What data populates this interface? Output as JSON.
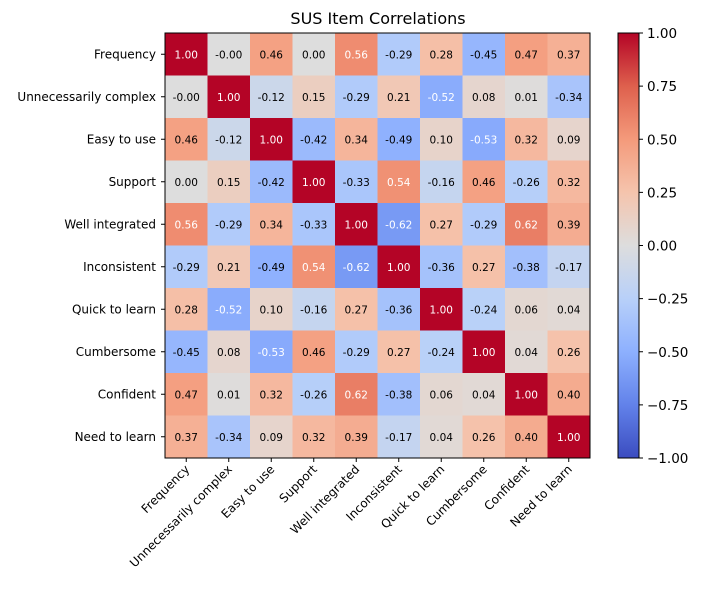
{
  "chart_data": {
    "type": "heatmap",
    "title": "SUS Item Correlations",
    "xlabel": "",
    "ylabel": "",
    "labels": [
      "Frequency",
      "Unnecessarily complex",
      "Easy to use",
      "Support",
      "Well integrated",
      "Inconsistent",
      "Quick to learn",
      "Cumbersome",
      "Confident",
      "Need to learn"
    ],
    "matrix": [
      [
        1.0,
        -0.0,
        0.46,
        0.0,
        0.56,
        -0.29,
        0.28,
        -0.45,
        0.47,
        0.37
      ],
      [
        -0.0,
        1.0,
        -0.12,
        0.15,
        -0.29,
        0.21,
        -0.52,
        0.08,
        0.01,
        -0.34
      ],
      [
        0.46,
        -0.12,
        1.0,
        -0.42,
        0.34,
        -0.49,
        0.1,
        -0.53,
        0.32,
        0.09
      ],
      [
        0.0,
        0.15,
        -0.42,
        1.0,
        -0.33,
        0.54,
        -0.16,
        0.46,
        -0.26,
        0.32
      ],
      [
        0.56,
        -0.29,
        0.34,
        -0.33,
        1.0,
        -0.62,
        0.27,
        -0.29,
        0.62,
        0.39
      ],
      [
        -0.29,
        0.21,
        -0.49,
        0.54,
        -0.62,
        1.0,
        -0.36,
        0.27,
        -0.38,
        -0.17
      ],
      [
        0.28,
        -0.52,
        0.1,
        -0.16,
        0.27,
        -0.36,
        1.0,
        -0.24,
        0.06,
        0.04
      ],
      [
        -0.45,
        0.08,
        -0.53,
        0.46,
        -0.29,
        0.27,
        -0.24,
        1.0,
        0.04,
        0.26
      ],
      [
        0.47,
        0.01,
        0.32,
        -0.26,
        0.62,
        -0.38,
        0.06,
        0.04,
        1.0,
        0.4
      ],
      [
        0.37,
        -0.34,
        0.09,
        0.32,
        0.39,
        -0.17,
        0.04,
        0.26,
        0.4,
        1.0
      ]
    ],
    "cell_labels": [
      [
        "1.00",
        "-0.00",
        "0.46",
        "0.00",
        "0.56",
        "-0.29",
        "0.28",
        "-0.45",
        "0.47",
        "0.37"
      ],
      [
        "-0.00",
        "1.00",
        "-0.12",
        "0.15",
        "-0.29",
        "0.21",
        "-0.52",
        "0.08",
        "0.01",
        "-0.34"
      ],
      [
        "0.46",
        "-0.12",
        "1.00",
        "-0.42",
        "0.34",
        "-0.49",
        "0.10",
        "-0.53",
        "0.32",
        "0.09"
      ],
      [
        "0.00",
        "0.15",
        "-0.42",
        "1.00",
        "-0.33",
        "0.54",
        "-0.16",
        "0.46",
        "-0.26",
        "0.32"
      ],
      [
        "0.56",
        "-0.29",
        "0.34",
        "-0.33",
        "1.00",
        "-0.62",
        "0.27",
        "-0.29",
        "0.62",
        "0.39"
      ],
      [
        "-0.29",
        "0.21",
        "-0.49",
        "0.54",
        "-0.62",
        "1.00",
        "-0.36",
        "0.27",
        "-0.38",
        "-0.17"
      ],
      [
        "0.28",
        "-0.52",
        "0.10",
        "-0.16",
        "0.27",
        "-0.36",
        "1.00",
        "-0.24",
        "0.06",
        "0.04"
      ],
      [
        "-0.45",
        "0.08",
        "-0.53",
        "0.46",
        "-0.29",
        "0.27",
        "-0.24",
        "1.00",
        "0.04",
        "0.26"
      ],
      [
        "0.47",
        "0.01",
        "0.32",
        "-0.26",
        "0.62",
        "-0.38",
        "0.06",
        "0.04",
        "1.00",
        "0.40"
      ],
      [
        "0.37",
        "-0.34",
        "0.09",
        "0.32",
        "0.39",
        "-0.17",
        "0.04",
        "0.26",
        "0.40",
        "1.00"
      ]
    ],
    "colormap": "coolwarm",
    "vmin": -1.0,
    "vmax": 1.0,
    "colorbar_ticks": [
      1.0,
      0.75,
      0.5,
      0.25,
      0.0,
      -0.25,
      -0.5,
      -0.75,
      -1.0
    ],
    "colorbar_tick_labels": [
      "1.00",
      "0.75",
      "0.50",
      "0.25",
      "0.00",
      "−0.25",
      "−0.50",
      "−0.75",
      "−1.00"
    ],
    "legend": "colorbar-right",
    "grid": false
  }
}
